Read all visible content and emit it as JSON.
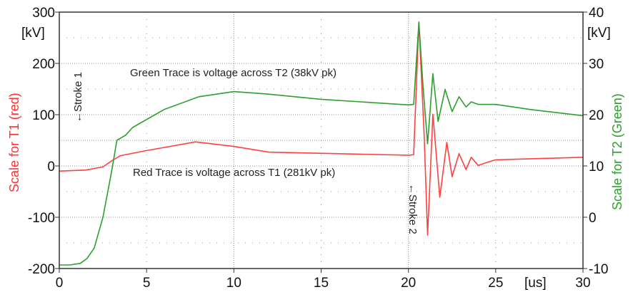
{
  "chart_data": {
    "type": "line",
    "x_unit_label": "[us]",
    "xlim": [
      0,
      30
    ],
    "xticks": [
      0,
      5,
      10,
      15,
      20,
      25,
      30
    ],
    "left_axis": {
      "label": "Scale for T1 (red)",
      "unit": "[kV]",
      "ylim": [
        -200,
        300
      ],
      "ticks": [
        -200,
        -100,
        0,
        100,
        200,
        300
      ],
      "color": "#ff3030"
    },
    "right_axis": {
      "label": "Scale for T2 (Green)",
      "unit": "[kV]",
      "ylim": [
        -10,
        40
      ],
      "ticks": [
        -10,
        0,
        10,
        20,
        30,
        40
      ],
      "color": "#2ca02c"
    },
    "grid": true,
    "series": [
      {
        "name": "T1 voltage (red)",
        "axis": "left",
        "color": "#ff4040",
        "x": [
          0,
          1.5,
          2.5,
          3,
          3.5,
          5,
          7.8,
          10,
          12,
          20,
          20.3,
          20.6,
          20.9,
          21.1,
          21.4,
          21.8,
          22.2,
          22.5,
          22.9,
          23.3,
          23.6,
          24,
          24.5,
          25,
          30
        ],
        "y": [
          -10,
          -8,
          -2,
          10,
          20,
          30,
          47,
          38,
          27,
          21,
          22,
          281,
          60,
          -135,
          101,
          -61,
          46,
          -21,
          24,
          -7,
          17,
          1,
          7,
          12,
          17
        ]
      },
      {
        "name": "T2 voltage (green)",
        "axis": "right",
        "color": "#2ca02c",
        "x": [
          0,
          0.6,
          1.2,
          1.6,
          2,
          2.5,
          3,
          3.3,
          3.8,
          4.2,
          6,
          8,
          10,
          12,
          15,
          20,
          20.3,
          20.6,
          20.85,
          21.1,
          21.4,
          21.7,
          22.1,
          22.5,
          22.9,
          23.3,
          23.6,
          24,
          25,
          27,
          30
        ],
        "y": [
          -9.3,
          -9.3,
          -9,
          -8,
          -6,
          0,
          9,
          15,
          16,
          17.5,
          21,
          23.5,
          24.5,
          24,
          23,
          21.9,
          22,
          38,
          25,
          14.3,
          28,
          18.7,
          24.9,
          20.6,
          23.5,
          21.5,
          22.5,
          22,
          22,
          21,
          19.8
        ]
      }
    ],
    "annotations": {
      "green": "Green Trace is voltage across T2 (38kV pk)",
      "red": "Red Trace is voltage across T1 (281kV pk)",
      "stroke1": "←Stroke 1",
      "stroke2": "←Stroke 2"
    }
  }
}
